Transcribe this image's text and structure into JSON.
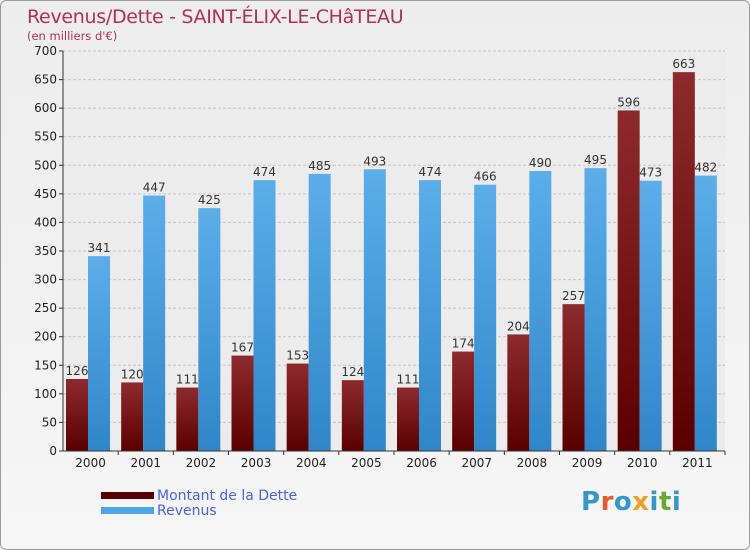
{
  "title": "Revenus/Dette - SAINT-ÉLIX-LE-CHâTEAU",
  "subtitle": "(en milliers d'€)",
  "logo": {
    "text": "Proxiti",
    "colors": [
      "#3399cc",
      "#e85a2a",
      "#3399cc",
      "#f0a020",
      "#3399cc",
      "#66aa33",
      "#3399cc"
    ]
  },
  "chart_data": {
    "type": "bar",
    "categories": [
      "2000",
      "2001",
      "2002",
      "2003",
      "2004",
      "2005",
      "2006",
      "2007",
      "2008",
      "2009",
      "2010",
      "2011"
    ],
    "series": [
      {
        "name": "Montant de la Dette",
        "color": "#7a1418",
        "values": [
          126,
          120,
          111,
          167,
          153,
          124,
          111,
          174,
          204,
          257,
          596,
          663
        ]
      },
      {
        "name": "Revenus",
        "color": "#4da6e6",
        "values": [
          341,
          447,
          425,
          474,
          485,
          493,
          474,
          466,
          490,
          495,
          473,
          482
        ]
      }
    ],
    "ylim": [
      0,
      700
    ],
    "yticks": [
      0,
      50,
      100,
      150,
      200,
      250,
      300,
      350,
      400,
      450,
      500,
      550,
      600,
      650,
      700
    ],
    "grid": true,
    "legend": "bottom-left"
  }
}
